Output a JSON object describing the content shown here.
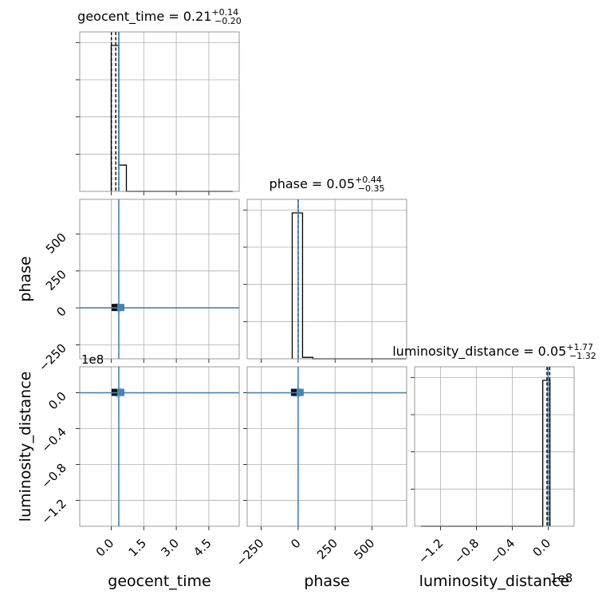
{
  "chart_data": {
    "type": "corner",
    "parameters": [
      "geocent_time",
      "phase",
      "luminosity_distance"
    ],
    "axis_labels": {
      "geocent_time": "geocent_time",
      "phase": "phase",
      "luminosity_distance": "luminosity_distance"
    },
    "titles": [
      {
        "name": "geocent_time",
        "prefix": "geocent_time = 0.21",
        "sup": "+0.14",
        "sub": "−0.20"
      },
      {
        "name": "phase",
        "prefix": "phase = 0.05",
        "sup": "+0.44",
        "sub": "−0.35"
      },
      {
        "name": "luminosity_distance",
        "prefix": "luminosity_distance = 0.05",
        "sup": "+1.77",
        "sub": "−1.32"
      }
    ],
    "ranges": {
      "geocent_time": [
        -1.45,
        5.9
      ],
      "phase": [
        -345,
        735
      ],
      "luminosity_distance": [
        -149000000.0,
        29000000.0
      ]
    },
    "ticks": {
      "geocent_time": {
        "values": [
          0.0,
          1.5,
          3.0,
          4.5
        ],
        "labels": [
          "0.0",
          "1.5",
          "3.0",
          "4.5"
        ]
      },
      "phase": {
        "values": [
          -250,
          0,
          250,
          500
        ],
        "labels": [
          "−250",
          "0",
          "250",
          "500"
        ]
      },
      "luminosity_distance": {
        "values": [
          -120000000.0,
          -80000000.0,
          -40000000.0,
          0.0
        ],
        "labels": [
          "−1.2",
          "−0.8",
          "−0.4",
          "0.0"
        ]
      }
    },
    "offset_text": "1e8",
    "truths": {
      "geocent_time": 0.35,
      "phase": 0,
      "luminosity_distance": 0
    },
    "histograms": {
      "geocent_time": {
        "edges": [
          0.0,
          0.35,
          0.7,
          1.05,
          1.4,
          1.75,
          2.1,
          2.45,
          2.8,
          3.15,
          3.5,
          3.85,
          4.2,
          4.55,
          4.9,
          5.25,
          5.6
        ],
        "counts": [
          1.0,
          0.18,
          0,
          0,
          0,
          0,
          0,
          0,
          0,
          0,
          0,
          0,
          0,
          0,
          0,
          0
        ],
        "quantiles": [
          0.01,
          0.21,
          0.35
        ]
      },
      "phase": {
        "edges": [
          -40,
          30,
          100,
          170,
          240,
          310,
          380,
          450,
          520,
          590,
          660,
          730
        ],
        "counts": [
          1.0,
          0.01,
          0,
          0,
          0,
          0,
          0,
          0,
          0,
          0,
          0
        ],
        "quantiles": [
          -0.3,
          0.05,
          0.49
        ]
      },
      "luminosity_distance": {
        "edges": [
          -142000000.0,
          -134000000.0,
          -126000000.0,
          -118000000.0,
          -110000000.0,
          -102000000.0,
          -94000000.0,
          -86000000.0,
          -78000000.0,
          -70000000.0,
          -62000000.0,
          -54000000.0,
          -46000000.0,
          -38000000.0,
          -30000000.0,
          -22000000.0,
          -14000000.0,
          -6000000.0,
          2000000.0
        ],
        "counts": [
          0,
          0,
          0,
          0,
          0,
          0,
          0,
          0,
          0,
          0,
          0,
          0,
          0,
          0,
          0,
          0,
          0,
          1.0
        ],
        "quantiles": [
          -1270000.0,
          50000.0,
          1820000.0
        ]
      }
    },
    "grid": true,
    "colors": {
      "truth": "#4682b4",
      "scatter": "#6a9cc8",
      "hist": "#000000",
      "grid": "#b0b0b0"
    }
  }
}
